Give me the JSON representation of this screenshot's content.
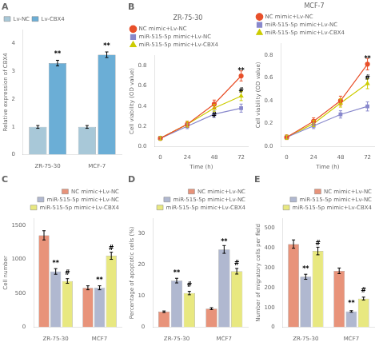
{
  "chart_data": [
    {
      "type": "bar",
      "title": "A",
      "categories": [
        "ZR-75-30",
        "MCF-7"
      ],
      "series": [
        {
          "name": "Lv-NC",
          "color": "#a8c8d8",
          "values": [
            1.0,
            1.0
          ],
          "errors": [
            0.05,
            0.05
          ]
        },
        {
          "name": "Lv-CBX4",
          "color": "#6baed6",
          "values": [
            3.3,
            3.6
          ],
          "errors": [
            0.1,
            0.1
          ]
        }
      ],
      "ylabel": "Relative expression of CBX4",
      "ylim": [
        0,
        4.5
      ],
      "yticks": [
        0,
        1,
        2,
        3,
        4
      ],
      "grid": false,
      "legend": "upper left",
      "annotations": [
        {
          "text": "**",
          "x": "ZR-75-30",
          "series": "Lv-CBX4",
          "y": 3.5
        },
        {
          "text": "**",
          "x": "MCF-7",
          "series": "Lv-CBX4",
          "y": 3.8
        }
      ]
    },
    {
      "type": "line",
      "title": "B",
      "subtitle": "ZR-75-30",
      "x": [
        0,
        24,
        48,
        72
      ],
      "series": [
        {
          "name": "NC mimic+Lv-NC",
          "color": "#e8502a",
          "marker": "circle",
          "values": [
            0.08,
            0.22,
            0.42,
            0.7
          ],
          "errors": [
            0.02,
            0.03,
            0.04,
            0.05
          ]
        },
        {
          "name": "miR-515-5p mimic+Lv-NC",
          "color": "#8888cc",
          "marker": "square",
          "values": [
            0.08,
            0.2,
            0.32,
            0.38
          ],
          "errors": [
            0.016,
            0.024,
            0.032,
            0.04
          ]
        },
        {
          "name": "miR-515-5p mimic+Lv-CBX4",
          "color": "#cccc00",
          "marker": "triangle",
          "values": [
            0.08,
            0.22,
            0.38,
            0.5
          ],
          "errors": [
            0.018,
            0.027,
            0.036,
            0.045
          ]
        }
      ],
      "xlabel": "Time (h)",
      "ylabel": "Cell viability (OD value)",
      "xlim": [
        -5,
        78
      ],
      "xticks": [
        0,
        24,
        48,
        72
      ],
      "ylim": [
        0.0,
        0.9
      ],
      "yticks": [
        {
          "value": 0,
          "label": "0.0"
        },
        0.2,
        0.4,
        0.6,
        0.8
      ],
      "grid": false,
      "legend": "upper left",
      "annotations": [
        {
          "text": "**",
          "x": 72,
          "y": 0.72
        },
        {
          "text": "#",
          "x": 72,
          "y": 0.52
        },
        {
          "text": "#",
          "x": 48,
          "y": 0.27
        }
      ]
    },
    {
      "type": "line",
      "subtitle": "MCF-7",
      "x": [
        0,
        24,
        48,
        72
      ],
      "series": [
        {
          "name": "NC mimic+Lv-NC",
          "color": "#e8502a",
          "marker": "circle",
          "values": [
            0.08,
            0.22,
            0.4,
            0.72
          ],
          "errors": [
            0.02,
            0.03,
            0.04,
            0.05
          ]
        },
        {
          "name": "miR-515-5p mimic+Lv-NC",
          "color": "#8888cc",
          "marker": "square",
          "values": [
            0.08,
            0.18,
            0.28,
            0.35
          ],
          "errors": [
            0.016,
            0.024,
            0.032,
            0.04
          ]
        },
        {
          "name": "miR-515-5p mimic+Lv-CBX4",
          "color": "#cccc00",
          "marker": "triangle",
          "values": [
            0.08,
            0.2,
            0.38,
            0.55
          ],
          "errors": [
            0.018,
            0.027,
            0.036,
            0.045
          ]
        }
      ],
      "xlabel": "Time (h)",
      "ylabel": "Cell viability (OD value)",
      "xlim": [
        -5,
        78
      ],
      "xticks": [
        0,
        24,
        48,
        72
      ],
      "ylim": [
        0.0,
        0.9
      ],
      "yticks": [
        {
          "value": 0,
          "label": "0.0"
        },
        0.2,
        0.4,
        0.6,
        0.8
      ],
      "grid": false,
      "legend": "upper left",
      "annotations": [
        {
          "text": "**",
          "x": 72,
          "y": 0.74
        },
        {
          "text": "#",
          "x": 72,
          "y": 0.57
        }
      ]
    },
    {
      "type": "bar",
      "title": "C",
      "categories": [
        "ZR-75-30",
        "MCF7"
      ],
      "series": [
        {
          "name": "NC mimic+Lv-NC",
          "color": "#e8937a",
          "values": [
            1350,
            580
          ],
          "errors": [
            67.5,
            29
          ]
        },
        {
          "name": "miR-515-5p mimic+Lv-NC",
          "color": "#b0b8d0",
          "values": [
            820,
            580
          ],
          "errors": [
            41,
            29
          ]
        },
        {
          "name": "miR-515-5p mimic+Lv-CBX4",
          "color": "#e8e880",
          "values": [
            680,
            1050
          ],
          "errors": [
            34,
            52.5
          ]
        }
      ],
      "ylabel": "Cell number",
      "ylim": [
        0,
        1600
      ],
      "yticks": [
        0,
        500,
        1000,
        1500
      ],
      "grid": false,
      "legend": "upper right",
      "annotations": [
        {
          "text": "**",
          "x": "ZR-75-30",
          "series": "miR-515-5p mimic+Lv-NC",
          "y": 884
        },
        {
          "text": "#",
          "x": "ZR-75-30",
          "series": "miR-515-5p mimic+Lv-CBX4",
          "y": 744
        },
        {
          "text": "**",
          "x": "MCF7",
          "series": "miR-515-5p mimic+Lv-NC",
          "y": 644
        },
        {
          "text": "#",
          "x": "MCF7",
          "series": "miR-515-5p mimic+Lv-CBX4",
          "y": 1114
        }
      ]
    },
    {
      "type": "bar",
      "title": "D",
      "categories": [
        "ZR-75-30",
        "MCF7"
      ],
      "series": [
        {
          "name": "NC mimic+Lv-NC",
          "color": "#e8937a",
          "values": [
            5,
            6
          ],
          "errors": [
            0.25,
            0.3
          ]
        },
        {
          "name": "miR-515-5p mimic+Lv-NC",
          "color": "#b0b8d0",
          "values": [
            15,
            25
          ],
          "errors": [
            0.75,
            1.25
          ]
        },
        {
          "name": "miR-515-5p mimic+Lv-CBX4",
          "color": "#e8e880",
          "values": [
            11,
            18
          ],
          "errors": [
            0.55,
            0.9
          ]
        }
      ],
      "ylabel": "Percentage of apoptotic cells (%)",
      "ylim": [
        0,
        35
      ],
      "yticks": [
        0,
        10,
        20,
        30
      ],
      "grid": false,
      "legend": "upper right",
      "annotations": [
        {
          "text": "**",
          "x": "ZR-75-30",
          "series": "miR-515-5p mimic+Lv-NC",
          "y": 16.4
        },
        {
          "text": "#",
          "x": "ZR-75-30",
          "series": "miR-515-5p mimic+Lv-CBX4",
          "y": 12.4
        },
        {
          "text": "**",
          "x": "MCF7",
          "series": "miR-515-5p mimic+Lv-NC",
          "y": 26.4
        },
        {
          "text": "#",
          "x": "MCF7",
          "series": "miR-515-5p mimic+Lv-CBX4",
          "y": 19.4
        }
      ]
    },
    {
      "type": "bar",
      "title": "E",
      "categories": [
        "ZR-75-30",
        "MCF7"
      ],
      "series": [
        {
          "name": "NC mimic+Lv-NC",
          "color": "#e8937a",
          "values": [
            420,
            285
          ],
          "errors": [
            21,
            14.25
          ]
        },
        {
          "name": "miR-515-5p mimic+Lv-NC",
          "color": "#b0b8d0",
          "values": [
            255,
            80
          ],
          "errors": [
            12.75,
            4
          ]
        },
        {
          "name": "miR-515-5p mimic+Lv-CBX4",
          "color": "#e8e880",
          "values": [
            385,
            145
          ],
          "errors": [
            19.25,
            7.25
          ]
        }
      ],
      "ylabel": "Number of migratory cells per field",
      "ylim": [
        0,
        550
      ],
      "yticks": [
        0,
        100,
        200,
        300,
        400,
        500
      ],
      "grid": false,
      "legend": "upper right",
      "annotations": [
        {
          "text": "**",
          "x": "ZR-75-30",
          "series": "miR-515-5p mimic+Lv-NC",
          "y": 277
        },
        {
          "text": "#",
          "x": "ZR-75-30",
          "series": "miR-515-5p mimic+Lv-CBX4",
          "y": 407
        },
        {
          "text": "**",
          "x": "MCF7",
          "series": "miR-515-5p mimic+Lv-NC",
          "y": 102
        },
        {
          "text": "#",
          "x": "MCF7",
          "series": "miR-515-5p mimic+Lv-CBX4",
          "y": 167
        }
      ]
    }
  ]
}
